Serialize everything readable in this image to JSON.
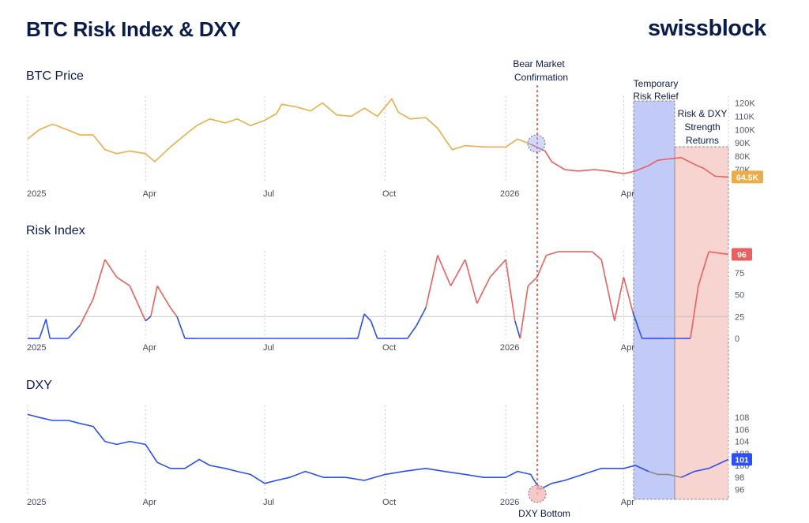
{
  "header": {
    "title": "BTC Risk Index & DXY",
    "brand": "swissblock"
  },
  "colors": {
    "btc_orange": "#e9ad4b",
    "risk_red": "#e8605f",
    "dxy_blue": "#2b4ff0",
    "relief_blue": "#9aa9f3",
    "returns_red": "#f4b7b3",
    "grey_dxy": "#888888",
    "text": "#0b1b4a"
  },
  "chart_data": [
    {
      "type": "line",
      "title": "BTC Price",
      "x_ticks": [
        "2025",
        "Apr",
        "Jul",
        "Oct",
        "2026",
        "Apr"
      ],
      "x_tick_dates": [
        "2025-01-01",
        "2025-04-01",
        "2025-07-01",
        "2025-10-01",
        "2026-01-01",
        "2026-04-01"
      ],
      "y_ticks": [
        "70K",
        "80K",
        "90K",
        "100K",
        "110K",
        "120K"
      ],
      "y_tick_values": [
        70000,
        80000,
        90000,
        100000,
        110000,
        120000
      ],
      "ylim": [
        60000,
        125000
      ],
      "last_value_label": "64.5K",
      "series": [
        {
          "x": [
            "2025-01-01",
            "2025-01-10",
            "2025-01-20",
            "2025-01-31",
            "2025-02-10",
            "2025-02-20",
            "2025-03-01",
            "2025-03-10",
            "2025-03-20",
            "2025-04-01",
            "2025-04-08",
            "2025-04-20",
            "2025-05-01",
            "2025-05-10",
            "2025-05-20",
            "2025-06-01",
            "2025-06-10",
            "2025-06-20",
            "2025-07-01",
            "2025-07-10",
            "2025-07-14",
            "2025-07-25",
            "2025-08-05",
            "2025-08-14",
            "2025-08-25",
            "2025-09-05",
            "2025-09-15",
            "2025-09-25",
            "2025-10-06",
            "2025-10-11",
            "2025-10-20",
            "2025-11-01",
            "2025-11-10",
            "2025-11-21",
            "2025-12-01",
            "2025-12-15",
            "2026-01-01",
            "2026-01-10",
            "2026-01-20",
            "2026-01-31",
            "2026-02-05",
            "2026-02-15",
            "2026-02-25",
            "2026-03-10",
            "2026-03-20",
            "2026-04-01",
            "2026-04-10",
            "2026-04-20",
            "2026-04-27",
            "2026-05-05",
            "2026-05-15",
            "2026-05-25",
            "2026-06-01",
            "2026-06-10",
            "2026-06-20"
          ],
          "values": [
            93000,
            100000,
            104000,
            100000,
            96000,
            96000,
            85000,
            82000,
            84000,
            82000,
            76000,
            87000,
            96000,
            103000,
            108000,
            105000,
            108000,
            103000,
            107000,
            112000,
            119000,
            117000,
            114000,
            120000,
            111000,
            110000,
            116000,
            110000,
            123000,
            113000,
            108000,
            109000,
            101000,
            85000,
            88000,
            87000,
            87000,
            93000,
            89000,
            84000,
            76000,
            70000,
            69000,
            70000,
            69000,
            67000,
            69000,
            73000,
            77000,
            78000,
            79000,
            74000,
            71000,
            65000,
            64500
          ],
          "color": "#e9ad4b",
          "color_after_2026-01-20": "#e8605f"
        }
      ]
    },
    {
      "type": "line",
      "title": "Risk Index",
      "x_ticks": [
        "2025",
        "Apr",
        "Jul",
        "Oct",
        "2026",
        "Apr"
      ],
      "y_ticks": [
        "0",
        "25",
        "50",
        "75"
      ],
      "y_tick_values": [
        0,
        25,
        50,
        75
      ],
      "ylim": [
        0,
        100
      ],
      "reference_line": 25,
      "last_value_label": "96",
      "series": [
        {
          "x": [
            "2025-01-01",
            "2025-01-10",
            "2025-01-15",
            "2025-01-18",
            "2025-02-01",
            "2025-02-10",
            "2025-02-20",
            "2025-03-01",
            "2025-03-10",
            "2025-03-20",
            "2025-04-01",
            "2025-04-05",
            "2025-04-10",
            "2025-04-20",
            "2025-04-25",
            "2025-05-01",
            "2025-05-10",
            "2025-06-01",
            "2025-07-01",
            "2025-08-01",
            "2025-09-01",
            "2025-09-10",
            "2025-09-15",
            "2025-09-20",
            "2025-09-25",
            "2025-10-01",
            "2025-10-10",
            "2025-10-18",
            "2025-10-25",
            "2025-11-01",
            "2025-11-10",
            "2025-11-20",
            "2025-12-01",
            "2025-12-10",
            "2025-12-20",
            "2026-01-01",
            "2026-01-08",
            "2026-01-12",
            "2026-01-18",
            "2026-01-25",
            "2026-02-01",
            "2026-02-10",
            "2026-03-01",
            "2026-03-08",
            "2026-03-15",
            "2026-03-25",
            "2026-04-01",
            "2026-04-08",
            "2026-04-15",
            "2026-04-20",
            "2026-04-27",
            "2026-05-05",
            "2026-05-15",
            "2026-05-22",
            "2026-05-28",
            "2026-06-05",
            "2026-06-20"
          ],
          "values": [
            0,
            0,
            22,
            0,
            0,
            15,
            45,
            90,
            70,
            60,
            20,
            25,
            60,
            35,
            25,
            0,
            0,
            0,
            0,
            0,
            0,
            0,
            28,
            20,
            0,
            0,
            0,
            0,
            15,
            35,
            95,
            60,
            90,
            40,
            70,
            90,
            20,
            0,
            60,
            70,
            95,
            99,
            99,
            99,
            90,
            20,
            70,
            30,
            0,
            0,
            0,
            0,
            0,
            0,
            60,
            99,
            96
          ],
          "low_color": "#2b4ff0",
          "high_color": "#e8605f"
        }
      ]
    },
    {
      "type": "line",
      "title": "DXY",
      "x_ticks": [
        "2025",
        "Apr",
        "Jul",
        "Oct",
        "2026",
        "Apr"
      ],
      "y_ticks": [
        "96",
        "98",
        "100",
        "102",
        "104",
        "106",
        "108"
      ],
      "y_tick_values": [
        96,
        98,
        100,
        102,
        104,
        106,
        108
      ],
      "ylim": [
        95,
        110
      ],
      "last_value_label": "101",
      "series": [
        {
          "x": [
            "2025-01-01",
            "2025-01-10",
            "2025-01-20",
            "2025-02-01",
            "2025-02-10",
            "2025-02-20",
            "2025-03-01",
            "2025-03-10",
            "2025-03-20",
            "2025-04-01",
            "2025-04-10",
            "2025-04-20",
            "2025-05-01",
            "2025-05-12",
            "2025-05-20",
            "2025-06-01",
            "2025-06-10",
            "2025-06-20",
            "2025-07-01",
            "2025-07-10",
            "2025-07-20",
            "2025-08-01",
            "2025-08-15",
            "2025-09-01",
            "2025-09-15",
            "2025-10-01",
            "2025-10-15",
            "2025-11-01",
            "2025-11-15",
            "2025-12-01",
            "2025-12-15",
            "2026-01-01",
            "2026-01-10",
            "2026-01-20",
            "2026-01-27",
            "2026-02-05",
            "2026-02-15",
            "2026-03-01",
            "2026-03-15",
            "2026-04-01",
            "2026-04-10",
            "2026-04-20",
            "2026-04-27",
            "2026-05-05",
            "2026-05-15",
            "2026-05-25",
            "2026-06-05",
            "2026-06-20"
          ],
          "values": [
            108.5,
            108,
            107.5,
            107.5,
            107,
            106.5,
            104,
            103.5,
            104,
            103.5,
            100.5,
            99.5,
            99.5,
            101,
            100,
            99.5,
            99,
            98.5,
            97,
            97.5,
            98,
            99,
            98,
            98,
            97.5,
            98.5,
            99,
            99.5,
            99,
            98.5,
            98,
            98,
            99,
            98.5,
            96,
            97,
            97.5,
            98.5,
            99.5,
            99.5,
            100,
            99,
            98.5,
            98.5,
            98,
            99,
            99.5,
            101
          ],
          "color": "#2b4ff0",
          "grey_segment": [
            "2026-04-20",
            "2026-05-15"
          ]
        }
      ]
    }
  ],
  "annotations": {
    "bear_market": "Bear Market Confirmation",
    "bear_market_line1": "Bear Market",
    "bear_market_line2": "Confirmation",
    "relief_line1": "Temporary",
    "relief_line2": "Risk Relief",
    "returns_line1": "Risk & DXY",
    "returns_line2": "Strength",
    "returns_line3": "Returns",
    "dxy_bottom": "DXY Bottom"
  }
}
